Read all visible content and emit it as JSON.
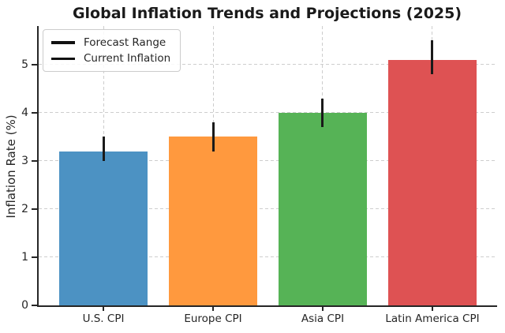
{
  "chart_data": {
    "type": "bar",
    "title": "Global Inflation Trends and Projections (2025)",
    "xlabel": "",
    "ylabel": "Inflation Rate (%)",
    "categories": [
      "U.S. CPI",
      "Europe CPI",
      "Asia CPI",
      "Latin America CPI"
    ],
    "series": [
      {
        "name": "Current Inflation",
        "values": [
          3.2,
          3.5,
          4.0,
          5.1
        ]
      }
    ],
    "error_bars": {
      "name": "Forecast Range",
      "low": [
        3.0,
        3.2,
        3.7,
        4.8
      ],
      "high": [
        3.5,
        3.8,
        4.3,
        5.5
      ]
    },
    "ylim": [
      0,
      5.8
    ],
    "yticks": [
      0,
      1,
      2,
      3,
      4,
      5
    ],
    "xlim": [
      -0.59,
      3.59
    ],
    "bar_width_units": 0.8,
    "grid": true,
    "grid_style": "dashed",
    "legend_position": "upper-left",
    "legend": [
      {
        "swatch": "line",
        "label": "Forecast Range"
      },
      {
        "swatch": "line",
        "label": "Current Inflation"
      }
    ],
    "bar_colors": [
      "#4C92C3",
      "#FF993E",
      "#56B356",
      "#DE5253"
    ],
    "error_color": "#1a1a1a",
    "grid_color": "#cdcdcd",
    "axis_color": "#262626",
    "title_color": "#1a1a1a"
  }
}
